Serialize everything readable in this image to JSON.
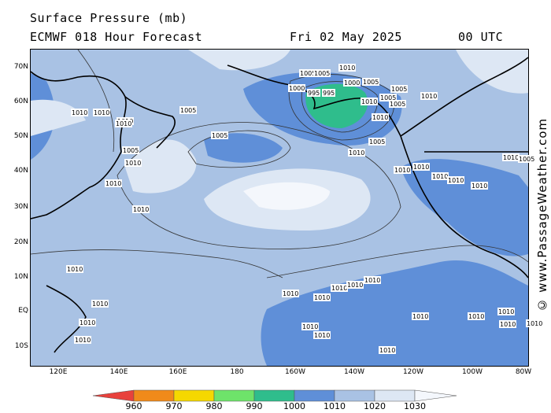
{
  "header": {
    "title": "Surface Pressure (mb)",
    "model": "ECMWF 018 Hour Forecast",
    "date": "Fri 02 May 2025",
    "time": "00 UTC"
  },
  "credit": "© www.PassageWeather.com",
  "axes": {
    "lat_labels": [
      "70N",
      "60N",
      "50N",
      "40N",
      "30N",
      "20N",
      "10N",
      "EQ",
      "10S"
    ],
    "lon_labels": [
      "120E",
      "140E",
      "160E",
      "180",
      "160W",
      "140W",
      "120W",
      "100W",
      "80W"
    ]
  },
  "colorbar": {
    "ticks": [
      "960",
      "970",
      "980",
      "990",
      "1000",
      "1010",
      "1020",
      "1030"
    ],
    "colors": [
      "#e8413c",
      "#f08a1a",
      "#f5d800",
      "#6ee36a",
      "#2fbd8c",
      "#5f8fd8",
      "#a9c2e4",
      "#dde7f4",
      "#f4f7fc"
    ]
  },
  "map": {
    "labels": [
      {
        "text": "1010"
      },
      {
        "text": "1005"
      },
      {
        "text": "1005"
      },
      {
        "text": "1000"
      },
      {
        "text": "995"
      },
      {
        "text": "995"
      },
      {
        "text": "1000"
      },
      {
        "text": "1005"
      },
      {
        "text": "1005"
      },
      {
        "text": "1010"
      },
      {
        "text": "1005"
      },
      {
        "text": "1010"
      },
      {
        "text": "1005"
      },
      {
        "text": "1010"
      },
      {
        "text": "1005"
      },
      {
        "text": "1010"
      },
      {
        "text": "1005"
      },
      {
        "text": "1010"
      },
      {
        "text": "1010"
      },
      {
        "text": "1005"
      },
      {
        "text": "1010"
      },
      {
        "text": "1010"
      },
      {
        "text": "1005"
      },
      {
        "text": "1010"
      },
      {
        "text": "1010"
      },
      {
        "text": "1010"
      },
      {
        "text": "1010"
      },
      {
        "text": "1010"
      },
      {
        "text": "1010"
      },
      {
        "text": "1010"
      },
      {
        "text": "1010"
      },
      {
        "text": "1010"
      },
      {
        "text": "1010"
      },
      {
        "text": "1010"
      },
      {
        "text": "1010"
      },
      {
        "text": "1010"
      },
      {
        "text": "1010"
      },
      {
        "text": "1010"
      },
      {
        "text": "1010"
      },
      {
        "text": "1010"
      },
      {
        "text": "1010"
      },
      {
        "text": "1010"
      },
      {
        "text": "1010"
      },
      {
        "text": "1010"
      },
      {
        "text": "1010"
      },
      {
        "text": "1010"
      },
      {
        "text": "1010"
      },
      {
        "text": "1010"
      },
      {
        "text": "1010"
      },
      {
        "text": "1005"
      }
    ]
  }
}
